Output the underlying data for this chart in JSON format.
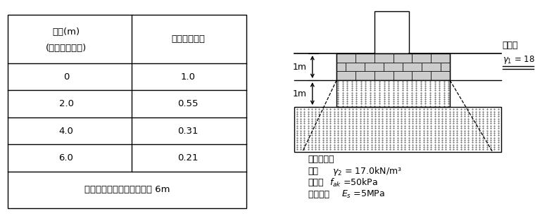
{
  "table": {
    "col1_header_line1": "深度(m)",
    "col1_header_line2": "(垫层底面以下)",
    "col2_header": "附加应力系数",
    "rows": [
      [
        "0",
        "1.0"
      ],
      [
        "2.0",
        "0.55"
      ],
      [
        "4.0",
        "0.31"
      ],
      [
        "6.0",
        "0.21"
      ]
    ],
    "footer": "采用分层总和法计算深度为 6m"
  },
  "bg_color": "#ffffff",
  "line_color": "#000000"
}
